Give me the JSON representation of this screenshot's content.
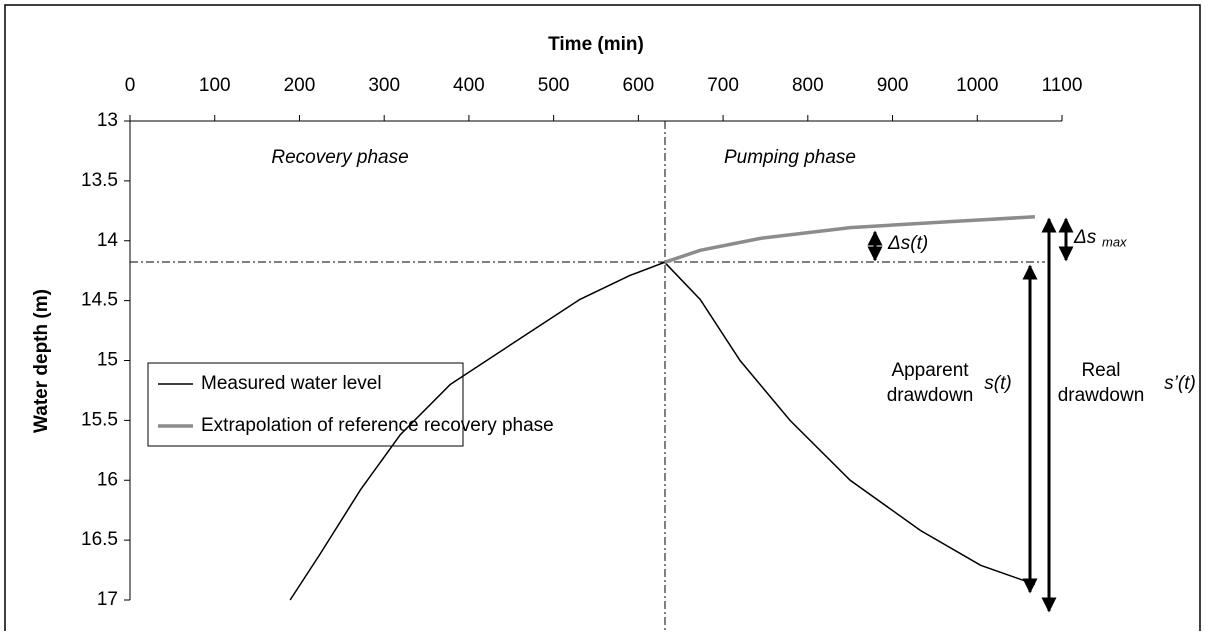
{
  "chart_data": {
    "type": "line",
    "xlabel": "Time (min)",
    "ylabel": "Water depth (m)",
    "xlim": [
      0,
      1100
    ],
    "xticks": [
      0,
      100,
      200,
      300,
      400,
      500,
      600,
      700,
      800,
      900,
      1000,
      1100
    ],
    "ylim": [
      17,
      13
    ],
    "yticks": [
      13,
      13.5,
      14,
      14.5,
      15,
      15.5,
      16,
      16.5,
      17
    ],
    "legend": "center-left",
    "series": [
      {
        "name": "Measured water level",
        "color": "#000000",
        "x": [
          189,
          224,
          272,
          319,
          378,
          449,
          531,
          590,
          631,
          673,
          720,
          779,
          850,
          933,
          1004,
          1068
        ],
        "values": [
          17.0,
          16.62,
          16.08,
          15.62,
          15.2,
          14.87,
          14.49,
          14.29,
          14.18,
          14.49,
          15.0,
          15.5,
          16.0,
          16.42,
          16.71,
          16.87
        ]
      },
      {
        "name": "Extrapolation of reference recovery phase",
        "color": "#8c8c8c",
        "x": [
          631,
          673,
          744,
          850,
          968,
          1068
        ],
        "values": [
          14.18,
          14.08,
          13.98,
          13.89,
          13.84,
          13.8
        ]
      }
    ],
    "annotations": {
      "recovery": "Recovery phase",
      "pumping": "Pumping phase",
      "ds": "Δs(t)",
      "dsmax": "Δs",
      "dsmax_sub": "max",
      "apparent1": "Apparent",
      "apparent2": "drawdown",
      "st": "s(t)",
      "real1": "Real",
      "real2": "drawdown",
      "spt": "s’(t)"
    }
  }
}
